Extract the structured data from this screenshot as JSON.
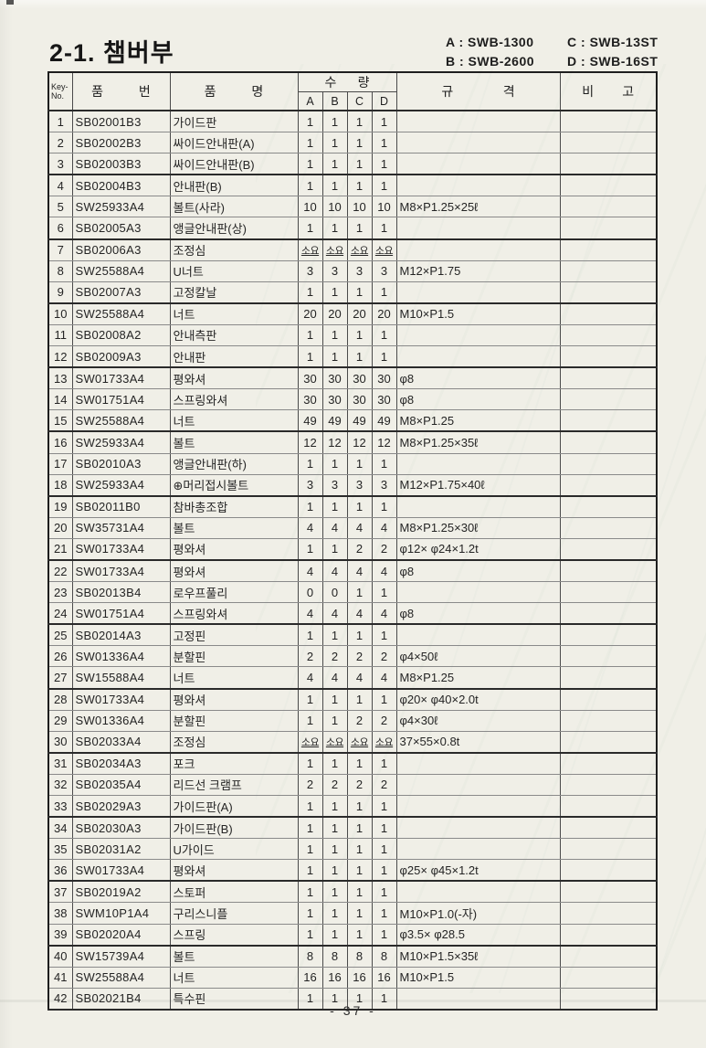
{
  "page": {
    "title": "2-1. 챔버부",
    "page_number": "- 37 -",
    "legend": [
      "A : SWB-1300",
      "B : SWB-2600",
      "C : SWB-13ST",
      "D : SWB-16ST"
    ]
  },
  "table": {
    "headers": {
      "key_no": "Key-\nNo.",
      "part_no": "품          번",
      "part_name": "품          명",
      "qty": "수      량",
      "qty_cols": [
        "A",
        "B",
        "C",
        "D"
      ],
      "spec": "규              격",
      "remarks": "비        고"
    },
    "rows": [
      {
        "no": "1",
        "part_no": "SB02001B3",
        "name": "가이드판",
        "qty": [
          "1",
          "1",
          "1",
          "1"
        ],
        "spec": "",
        "remark": ""
      },
      {
        "no": "2",
        "part_no": "SB02002B3",
        "name": "싸이드안내판(A)",
        "qty": [
          "1",
          "1",
          "1",
          "1"
        ],
        "spec": "",
        "remark": ""
      },
      {
        "no": "3",
        "part_no": "SB02003B3",
        "name": "싸이드안내판(B)",
        "qty": [
          "1",
          "1",
          "1",
          "1"
        ],
        "spec": "",
        "remark": ""
      },
      {
        "no": "4",
        "part_no": "SB02004B3",
        "name": "안내판(B)",
        "qty": [
          "1",
          "1",
          "1",
          "1"
        ],
        "spec": "",
        "remark": ""
      },
      {
        "no": "5",
        "part_no": "SW25933A4",
        "name": "볼트(사라)",
        "qty": [
          "10",
          "10",
          "10",
          "10"
        ],
        "spec": "M8×P1.25×25ℓ",
        "remark": ""
      },
      {
        "no": "6",
        "part_no": "SB02005A3",
        "name": "앵글안내판(상)",
        "qty": [
          "1",
          "1",
          "1",
          "1"
        ],
        "spec": "",
        "remark": ""
      },
      {
        "no": "7",
        "part_no": "SB02006A3",
        "name": "조정심",
        "qty": [
          "소요",
          "소요",
          "소요",
          "소요"
        ],
        "spec": "",
        "remark": ""
      },
      {
        "no": "8",
        "part_no": "SW25588A4",
        "name": "U너트",
        "qty": [
          "3",
          "3",
          "3",
          "3"
        ],
        "spec": "M12×P1.75",
        "remark": ""
      },
      {
        "no": "9",
        "part_no": "SB02007A3",
        "name": "고정칼날",
        "qty": [
          "1",
          "1",
          "1",
          "1"
        ],
        "spec": "",
        "remark": ""
      },
      {
        "no": "10",
        "part_no": "SW25588A4",
        "name": "너트",
        "qty": [
          "20",
          "20",
          "20",
          "20"
        ],
        "spec": "M10×P1.5",
        "remark": ""
      },
      {
        "no": "11",
        "part_no": "SB02008A2",
        "name": "안내측판",
        "qty": [
          "1",
          "1",
          "1",
          "1"
        ],
        "spec": "",
        "remark": ""
      },
      {
        "no": "12",
        "part_no": "SB02009A3",
        "name": "안내판",
        "qty": [
          "1",
          "1",
          "1",
          "1"
        ],
        "spec": "",
        "remark": ""
      },
      {
        "no": "13",
        "part_no": "SW01733A4",
        "name": "평와셔",
        "qty": [
          "30",
          "30",
          "30",
          "30"
        ],
        "spec": "φ8",
        "remark": ""
      },
      {
        "no": "14",
        "part_no": "SW01751A4",
        "name": "스프링와셔",
        "qty": [
          "30",
          "30",
          "30",
          "30"
        ],
        "spec": "φ8",
        "remark": ""
      },
      {
        "no": "15",
        "part_no": "SW25588A4",
        "name": "너트",
        "qty": [
          "49",
          "49",
          "49",
          "49"
        ],
        "spec": "M8×P1.25",
        "remark": ""
      },
      {
        "no": "16",
        "part_no": "SW25933A4",
        "name": "볼트",
        "qty": [
          "12",
          "12",
          "12",
          "12"
        ],
        "spec": "M8×P1.25×35ℓ",
        "remark": ""
      },
      {
        "no": "17",
        "part_no": "SB02010A3",
        "name": "앵글안내판(하)",
        "qty": [
          "1",
          "1",
          "1",
          "1"
        ],
        "spec": "",
        "remark": ""
      },
      {
        "no": "18",
        "part_no": "SW25933A4",
        "name": "⊕머리접시볼트",
        "qty": [
          "3",
          "3",
          "3",
          "3"
        ],
        "spec": "M12×P1.75×40ℓ",
        "remark": ""
      },
      {
        "no": "19",
        "part_no": "SB02011B0",
        "name": "참바총조합",
        "qty": [
          "1",
          "1",
          "1",
          "1"
        ],
        "spec": "",
        "remark": ""
      },
      {
        "no": "20",
        "part_no": "SW35731A4",
        "name": "볼트",
        "qty": [
          "4",
          "4",
          "4",
          "4"
        ],
        "spec": "M8×P1.25×30ℓ",
        "remark": ""
      },
      {
        "no": "21",
        "part_no": "SW01733A4",
        "name": "평와셔",
        "qty": [
          "1",
          "1",
          "2",
          "2"
        ],
        "spec": "φ12× φ24×1.2t",
        "remark": ""
      },
      {
        "no": "22",
        "part_no": "SW01733A4",
        "name": "평와셔",
        "qty": [
          "4",
          "4",
          "4",
          "4"
        ],
        "spec": "φ8",
        "remark": ""
      },
      {
        "no": "23",
        "part_no": "SB02013B4",
        "name": "로우프풀리",
        "qty": [
          "0",
          "0",
          "1",
          "1"
        ],
        "spec": "",
        "remark": ""
      },
      {
        "no": "24",
        "part_no": "SW01751A4",
        "name": "스프링와셔",
        "qty": [
          "4",
          "4",
          "4",
          "4"
        ],
        "spec": "φ8",
        "remark": ""
      },
      {
        "no": "25",
        "part_no": "SB02014A3",
        "name": "고정핀",
        "qty": [
          "1",
          "1",
          "1",
          "1"
        ],
        "spec": "",
        "remark": ""
      },
      {
        "no": "26",
        "part_no": "SW01336A4",
        "name": "분할핀",
        "qty": [
          "2",
          "2",
          "2",
          "2"
        ],
        "spec": "φ4×50ℓ",
        "remark": ""
      },
      {
        "no": "27",
        "part_no": "SW15588A4",
        "name": "너트",
        "qty": [
          "4",
          "4",
          "4",
          "4"
        ],
        "spec": "M8×P1.25",
        "remark": ""
      },
      {
        "no": "28",
        "part_no": "SW01733A4",
        "name": "평와셔",
        "qty": [
          "1",
          "1",
          "1",
          "1"
        ],
        "spec": "φ20× φ40×2.0t",
        "remark": ""
      },
      {
        "no": "29",
        "part_no": "SW01336A4",
        "name": "분할핀",
        "qty": [
          "1",
          "1",
          "2",
          "2"
        ],
        "spec": "φ4×30ℓ",
        "remark": ""
      },
      {
        "no": "30",
        "part_no": "SB02033A4",
        "name": "조정심",
        "qty": [
          "소요",
          "소요",
          "소요",
          "소요"
        ],
        "spec": "37×55×0.8t",
        "remark": ""
      },
      {
        "no": "31",
        "part_no": "SB02034A3",
        "name": "포크",
        "qty": [
          "1",
          "1",
          "1",
          "1"
        ],
        "spec": "",
        "remark": ""
      },
      {
        "no": "32",
        "part_no": "SB02035A4",
        "name": "리드선 크램프",
        "qty": [
          "2",
          "2",
          "2",
          "2"
        ],
        "spec": "",
        "remark": ""
      },
      {
        "no": "33",
        "part_no": "SB02029A3",
        "name": "가이드판(A)",
        "qty": [
          "1",
          "1",
          "1",
          "1"
        ],
        "spec": "",
        "remark": ""
      },
      {
        "no": "34",
        "part_no": "SB02030A3",
        "name": "가이드판(B)",
        "qty": [
          "1",
          "1",
          "1",
          "1"
        ],
        "spec": "",
        "remark": ""
      },
      {
        "no": "35",
        "part_no": "SB02031A2",
        "name": "U가이드",
        "qty": [
          "1",
          "1",
          "1",
          "1"
        ],
        "spec": "",
        "remark": ""
      },
      {
        "no": "36",
        "part_no": "SW01733A4",
        "name": "평와셔",
        "qty": [
          "1",
          "1",
          "1",
          "1"
        ],
        "spec": "φ25× φ45×1.2t",
        "remark": ""
      },
      {
        "no": "37",
        "part_no": "SB02019A2",
        "name": "스토퍼",
        "qty": [
          "1",
          "1",
          "1",
          "1"
        ],
        "spec": "",
        "remark": ""
      },
      {
        "no": "38",
        "part_no": "SWM10P1A4",
        "name": "구리스니플",
        "qty": [
          "1",
          "1",
          "1",
          "1"
        ],
        "spec": "M10×P1.0(-자)",
        "remark": ""
      },
      {
        "no": "39",
        "part_no": "SB02020A4",
        "name": "스프링",
        "qty": [
          "1",
          "1",
          "1",
          "1"
        ],
        "spec": "φ3.5× φ28.5",
        "remark": ""
      },
      {
        "no": "40",
        "part_no": "SW15739A4",
        "name": "볼트",
        "qty": [
          "8",
          "8",
          "8",
          "8"
        ],
        "spec": "M10×P1.5×35ℓ",
        "remark": ""
      },
      {
        "no": "41",
        "part_no": "SW25588A4",
        "name": "너트",
        "qty": [
          "16",
          "16",
          "16",
          "16"
        ],
        "spec": "M10×P1.5",
        "remark": ""
      },
      {
        "no": "42",
        "part_no": "SB02021B4",
        "name": "특수핀",
        "qty": [
          "1",
          "1",
          "1",
          "1"
        ],
        "spec": "",
        "remark": ""
      }
    ]
  }
}
